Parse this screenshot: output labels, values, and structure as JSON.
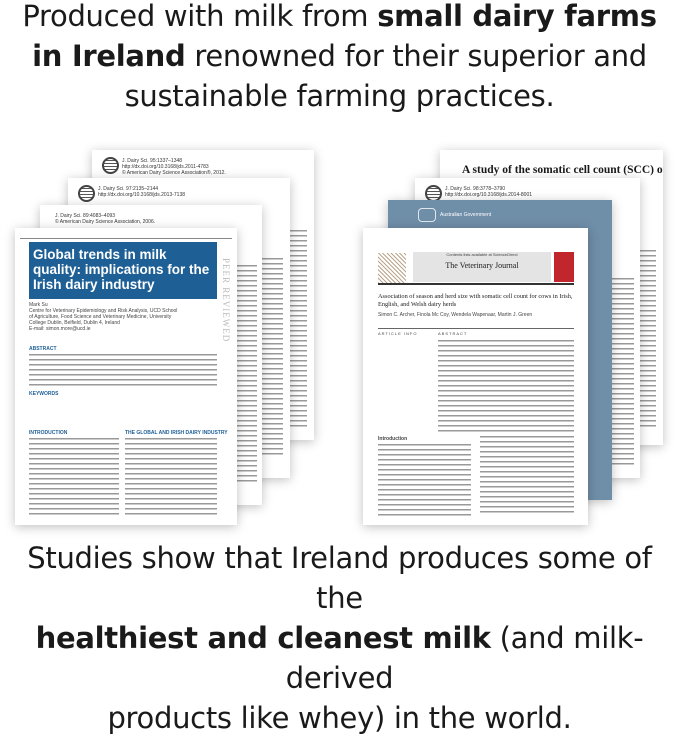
{
  "top_text": {
    "pre": "Produced with milk from ",
    "bold1": "small dairy farms",
    "bold2": "in Ireland",
    "post": " renowned for their superior and",
    "line3": "sustainable farming practices."
  },
  "left_stack": {
    "paper1": {
      "journal": "J. Dairy Sci. 95:1337–1348",
      "doi": "http://dx.doi.org/10.3168/jds.2011-4783",
      "copyright": "© American Dairy Science Association®, 2012."
    },
    "paper2": {
      "journal": "J. Dairy Sci. 97:2135–2144",
      "doi": "http://dx.doi.org/10.3168/jds.2013-7138"
    },
    "paper3": {
      "journal": "J. Dairy Sci. 89:4083–4093",
      "copyright": "© American Dairy Science Association, 2006."
    },
    "front": {
      "title": "Global trends in milk quality: implications for the Irish dairy industry",
      "side_label": "PEER REVIEWED",
      "author": "Mark Su",
      "affiliation": "Centre for Veterinary Epidemiology and Risk Analysis, UCD School of Agriculture, Food Science and Veterinary Medicine, University College Dublin, Belfield, Dublin 4, Ireland",
      "email": "E-mail: simon.more@ucd.ie",
      "abstract_heading": "ABSTRACT",
      "keywords_heading": "KEYWORDS",
      "intro_heading": "INTRODUCTION",
      "section_heading": "THE GLOBAL AND IRISH DAIRY INDUSTRY"
    }
  },
  "right_stack": {
    "paper1": {
      "title": "A study of the somatic cell count (SCC) of Irish milk"
    },
    "paper2": {
      "journal": "J. Dairy Sci. 98:3778–3790",
      "doi": "http://dx.doi.org/10.3168/jds.2014-8001"
    },
    "paper3": {
      "org": "Australian Government"
    },
    "front": {
      "contents_line": "Contents lists available at ScienceDirect",
      "journal": "The Veterinary Journal",
      "title": "Association of season and herd size with somatic cell count for cows in Irish, English, and Welsh dairy herds",
      "authors": "Simon C. Archer, Finola Mc Coy, Wendela Wapenaar, Martin J. Green",
      "article_info": "ARTICLE INFO",
      "abstract": "ABSTRACT",
      "intro": "Introduction"
    }
  },
  "bottom_text": {
    "line1": "Studies show that Ireland produces some of the",
    "bold": "healthiest and cleanest milk",
    "post": " (and milk-derived",
    "line3": "products like whey) in the world."
  },
  "colors": {
    "title_blue": "#1e5f96",
    "gov_blue": "#6f8ea8",
    "elsevier_red": "#c0262c"
  }
}
